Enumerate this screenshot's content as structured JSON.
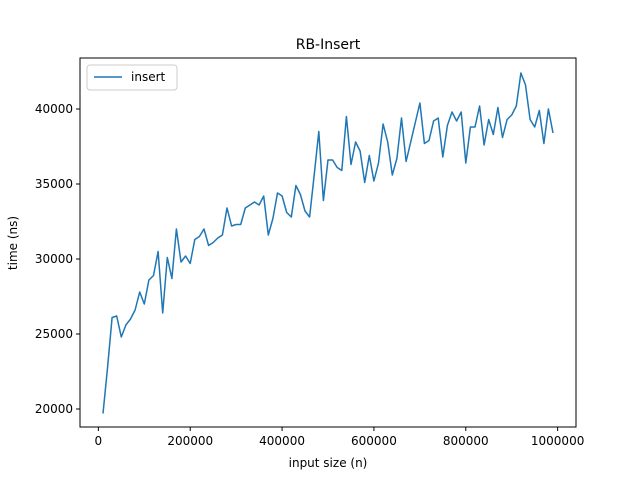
{
  "chart_data": {
    "type": "line",
    "title": "RB-Insert",
    "xlabel": "input size (n)",
    "ylabel": "time (ns)",
    "xlim": [
      -40000,
      1040000
    ],
    "ylim": [
      18800,
      43400
    ],
    "xticks": [
      0,
      200000,
      400000,
      600000,
      800000,
      1000000
    ],
    "xtick_labels": [
      "0",
      "200000",
      "400000",
      "600000",
      "800000",
      "1000000"
    ],
    "yticks": [
      20000,
      25000,
      30000,
      35000,
      40000
    ],
    "ytick_labels": [
      "20000",
      "25000",
      "30000",
      "35000",
      "40000"
    ],
    "grid": false,
    "legend_position": "top-left",
    "series": [
      {
        "name": "insert",
        "color": "#1f77b4",
        "x": [
          10000,
          20000,
          30000,
          40000,
          50000,
          60000,
          70000,
          80000,
          90000,
          100000,
          110000,
          120000,
          130000,
          140000,
          150000,
          160000,
          170000,
          180000,
          190000,
          200000,
          210000,
          220000,
          230000,
          240000,
          250000,
          260000,
          270000,
          280000,
          290000,
          300000,
          310000,
          320000,
          330000,
          340000,
          350000,
          360000,
          370000,
          380000,
          390000,
          400000,
          410000,
          420000,
          430000,
          440000,
          450000,
          460000,
          470000,
          480000,
          490000,
          500000,
          510000,
          520000,
          530000,
          540000,
          550000,
          560000,
          570000,
          580000,
          590000,
          600000,
          610000,
          620000,
          630000,
          640000,
          650000,
          660000,
          670000,
          680000,
          690000,
          700000,
          710000,
          720000,
          730000,
          740000,
          750000,
          760000,
          770000,
          780000,
          790000,
          800000,
          810000,
          820000,
          830000,
          840000,
          850000,
          860000,
          870000,
          880000,
          890000,
          900000,
          910000,
          920000,
          930000,
          940000,
          950000,
          960000,
          970000,
          980000,
          990000
        ],
        "values": [
          19700,
          22800,
          26100,
          26200,
          24800,
          25600,
          26000,
          26600,
          27800,
          27000,
          28600,
          28900,
          30500,
          26400,
          30100,
          28700,
          32000,
          29800,
          30200,
          29700,
          31300,
          31500,
          32000,
          30900,
          31100,
          31400,
          31600,
          33400,
          32200,
          32300,
          32300,
          33400,
          33600,
          33800,
          33600,
          34200,
          31600,
          32700,
          34400,
          34200,
          33100,
          32800,
          34900,
          34300,
          33200,
          32800,
          35600,
          38500,
          33900,
          36600,
          36600,
          36100,
          35900,
          39500,
          36300,
          37800,
          37200,
          35100,
          36900,
          35200,
          36400,
          39000,
          37800,
          35600,
          36700,
          39400,
          36500,
          37800,
          39100,
          40400,
          37700,
          37900,
          39200,
          39400,
          36800,
          38900,
          39800,
          39200,
          39800,
          36400,
          38800,
          38800,
          40200,
          37600,
          39300,
          38300,
          40100,
          38100,
          39300,
          39600,
          40200,
          42400,
          41600,
          39300,
          38800,
          39900,
          37700,
          40000,
          38400
        ]
      }
    ]
  }
}
